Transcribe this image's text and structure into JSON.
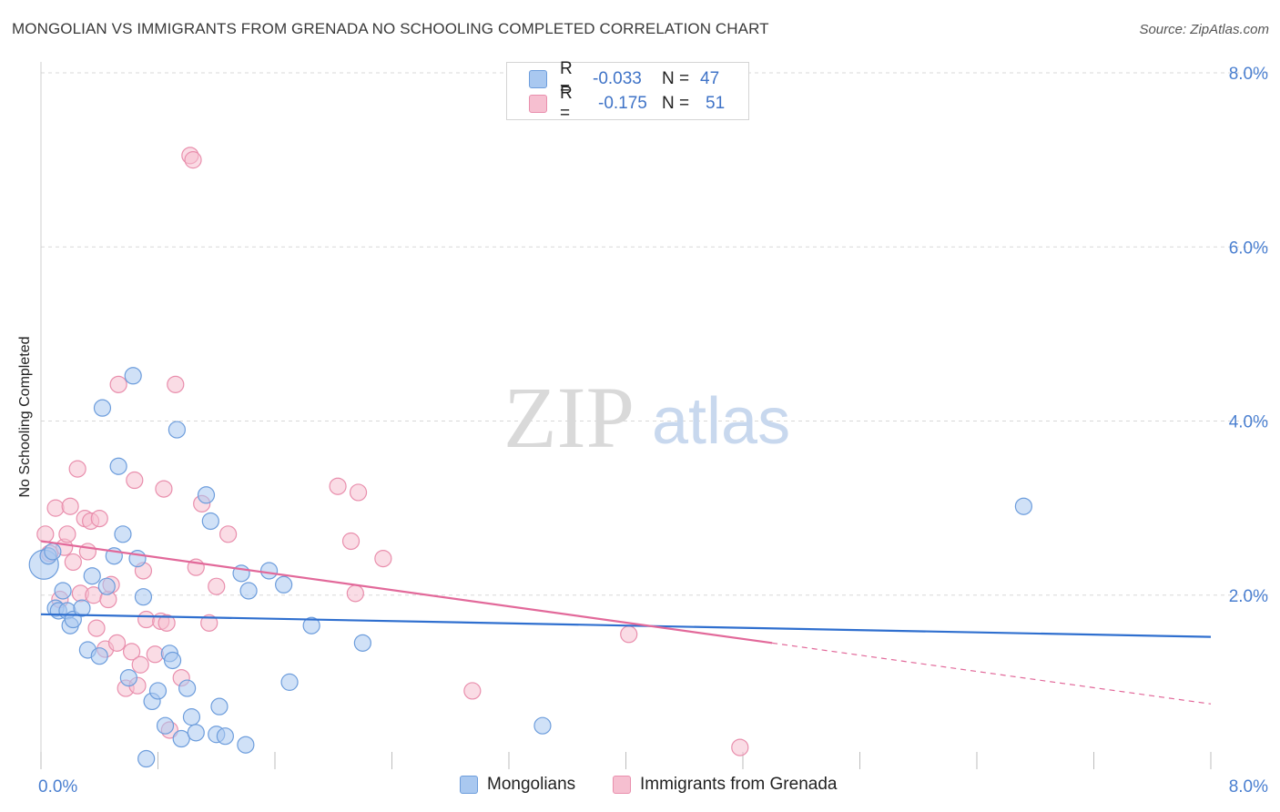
{
  "header": {
    "title": "MONGOLIAN VS IMMIGRANTS FROM GRENADA NO SCHOOLING COMPLETED CORRELATION CHART",
    "source": "Source: ZipAtlas.com"
  },
  "watermark": {
    "zip": "ZIP",
    "atlas": "atlas"
  },
  "colors": {
    "blue_fill": "#a9c8f0",
    "blue_stroke": "#6d9ddc",
    "blue_line": "#2f6fcf",
    "pink_fill": "#f6bfd0",
    "pink_stroke": "#e98fad",
    "pink_line": "#e2699a",
    "grid": "#d8d8d8",
    "tick_text": "#4a7fd0"
  },
  "legend": {
    "rows": [
      {
        "r_label": "R =",
        "r_value": "-0.033",
        "n_label": "N =",
        "n_value": "47"
      },
      {
        "r_label": "R =",
        "r_value": "-0.175",
        "n_label": "N =",
        "n_value": "51"
      }
    ]
  },
  "bottom_legend": {
    "mongolians": "Mongolians",
    "grenada": "Immigrants from Grenada"
  },
  "chart_data": {
    "type": "scatter",
    "title": "MONGOLIAN VS IMMIGRANTS FROM GRENADA NO SCHOOLING COMPLETED CORRELATION CHART",
    "xlabel": "",
    "ylabel": "No Schooling Completed",
    "xlim": [
      0,
      8
    ],
    "ylim": [
      0,
      8
    ],
    "x_tick_labels": [
      "0.0%",
      "8.0%"
    ],
    "y_ticks": [
      2,
      4,
      6,
      8
    ],
    "y_tick_labels": [
      "2.0%",
      "4.0%",
      "6.0%",
      "8.0%"
    ],
    "grid": true,
    "series": [
      {
        "name": "Mongolians",
        "R": -0.033,
        "N": 47,
        "trend": {
          "x": [
            0,
            8
          ],
          "y": [
            1.78,
            1.52
          ]
        },
        "points": [
          {
            "x": 0.02,
            "y": 2.35,
            "big": true
          },
          {
            "x": 0.05,
            "y": 2.45
          },
          {
            "x": 0.08,
            "y": 2.5
          },
          {
            "x": 0.1,
            "y": 1.85
          },
          {
            "x": 0.12,
            "y": 1.82
          },
          {
            "x": 0.15,
            "y": 2.05
          },
          {
            "x": 0.18,
            "y": 1.82
          },
          {
            "x": 0.2,
            "y": 1.65
          },
          {
            "x": 0.22,
            "y": 1.72
          },
          {
            "x": 0.28,
            "y": 1.85
          },
          {
            "x": 0.32,
            "y": 1.37
          },
          {
            "x": 0.35,
            "y": 2.22
          },
          {
            "x": 0.4,
            "y": 1.3
          },
          {
            "x": 0.42,
            "y": 4.15
          },
          {
            "x": 0.45,
            "y": 2.1
          },
          {
            "x": 0.5,
            "y": 2.45
          },
          {
            "x": 0.53,
            "y": 3.48
          },
          {
            "x": 0.56,
            "y": 2.7
          },
          {
            "x": 0.6,
            "y": 1.05
          },
          {
            "x": 0.63,
            "y": 4.52
          },
          {
            "x": 0.66,
            "y": 2.42
          },
          {
            "x": 0.7,
            "y": 1.98
          },
          {
            "x": 0.72,
            "y": 0.12
          },
          {
            "x": 0.76,
            "y": 0.78
          },
          {
            "x": 0.8,
            "y": 0.9
          },
          {
            "x": 0.85,
            "y": 0.5
          },
          {
            "x": 0.88,
            "y": 1.33
          },
          {
            "x": 0.9,
            "y": 1.25
          },
          {
            "x": 0.93,
            "y": 3.9
          },
          {
            "x": 0.96,
            "y": 0.35
          },
          {
            "x": 1.0,
            "y": 0.93
          },
          {
            "x": 1.03,
            "y": 0.6
          },
          {
            "x": 1.06,
            "y": 0.42
          },
          {
            "x": 1.13,
            "y": 3.15
          },
          {
            "x": 1.16,
            "y": 2.85
          },
          {
            "x": 1.2,
            "y": 0.4
          },
          {
            "x": 1.22,
            "y": 0.72
          },
          {
            "x": 1.26,
            "y": 0.38
          },
          {
            "x": 1.37,
            "y": 2.25
          },
          {
            "x": 1.4,
            "y": 0.28
          },
          {
            "x": 1.42,
            "y": 2.05
          },
          {
            "x": 1.56,
            "y": 2.28
          },
          {
            "x": 1.66,
            "y": 2.12
          },
          {
            "x": 1.7,
            "y": 1.0
          },
          {
            "x": 1.85,
            "y": 1.65
          },
          {
            "x": 2.2,
            "y": 1.45
          },
          {
            "x": 3.43,
            "y": 0.5
          },
          {
            "x": 6.72,
            "y": 3.02
          }
        ]
      },
      {
        "name": "Immigrants from Grenada",
        "R": -0.175,
        "N": 51,
        "trend": {
          "x": [
            0,
            5.0
          ],
          "y": [
            2.62,
            1.45
          ]
        },
        "trend_dashed": {
          "x": [
            5.0,
            8
          ],
          "y": [
            1.45,
            0.75
          ]
        },
        "points": [
          {
            "x": 0.03,
            "y": 2.7
          },
          {
            "x": 0.06,
            "y": 2.48
          },
          {
            "x": 0.1,
            "y": 3.0
          },
          {
            "x": 0.13,
            "y": 1.95
          },
          {
            "x": 0.16,
            "y": 2.55
          },
          {
            "x": 0.18,
            "y": 2.7
          },
          {
            "x": 0.2,
            "y": 3.02
          },
          {
            "x": 0.22,
            "y": 2.38
          },
          {
            "x": 0.27,
            "y": 2.02
          },
          {
            "x": 0.25,
            "y": 3.45
          },
          {
            "x": 0.3,
            "y": 2.88
          },
          {
            "x": 0.32,
            "y": 2.5
          },
          {
            "x": 0.34,
            "y": 2.85
          },
          {
            "x": 0.36,
            "y": 2.0
          },
          {
            "x": 0.38,
            "y": 1.62
          },
          {
            "x": 0.4,
            "y": 2.88
          },
          {
            "x": 0.44,
            "y": 1.38
          },
          {
            "x": 0.46,
            "y": 1.95
          },
          {
            "x": 0.48,
            "y": 2.12
          },
          {
            "x": 0.52,
            "y": 1.45
          },
          {
            "x": 0.53,
            "y": 4.42
          },
          {
            "x": 0.58,
            "y": 0.93
          },
          {
            "x": 0.62,
            "y": 1.35
          },
          {
            "x": 0.64,
            "y": 3.32
          },
          {
            "x": 0.66,
            "y": 0.96
          },
          {
            "x": 0.68,
            "y": 1.2
          },
          {
            "x": 0.7,
            "y": 2.28
          },
          {
            "x": 0.72,
            "y": 1.72
          },
          {
            "x": 0.78,
            "y": 1.32
          },
          {
            "x": 0.82,
            "y": 1.7
          },
          {
            "x": 0.84,
            "y": 3.22
          },
          {
            "x": 0.86,
            "y": 1.68
          },
          {
            "x": 0.88,
            "y": 0.45
          },
          {
            "x": 0.92,
            "y": 4.42
          },
          {
            "x": 0.96,
            "y": 1.05
          },
          {
            "x": 1.02,
            "y": 7.05
          },
          {
            "x": 1.04,
            "y": 7.0
          },
          {
            "x": 1.06,
            "y": 2.32
          },
          {
            "x": 1.1,
            "y": 3.05
          },
          {
            "x": 1.15,
            "y": 1.68
          },
          {
            "x": 1.2,
            "y": 2.1
          },
          {
            "x": 1.28,
            "y": 2.7
          },
          {
            "x": 2.03,
            "y": 3.25
          },
          {
            "x": 2.12,
            "y": 2.62
          },
          {
            "x": 2.15,
            "y": 2.02
          },
          {
            "x": 2.17,
            "y": 3.18
          },
          {
            "x": 2.34,
            "y": 2.42
          },
          {
            "x": 2.95,
            "y": 0.9
          },
          {
            "x": 4.02,
            "y": 1.55
          },
          {
            "x": 4.78,
            "y": 0.25
          }
        ]
      }
    ]
  }
}
